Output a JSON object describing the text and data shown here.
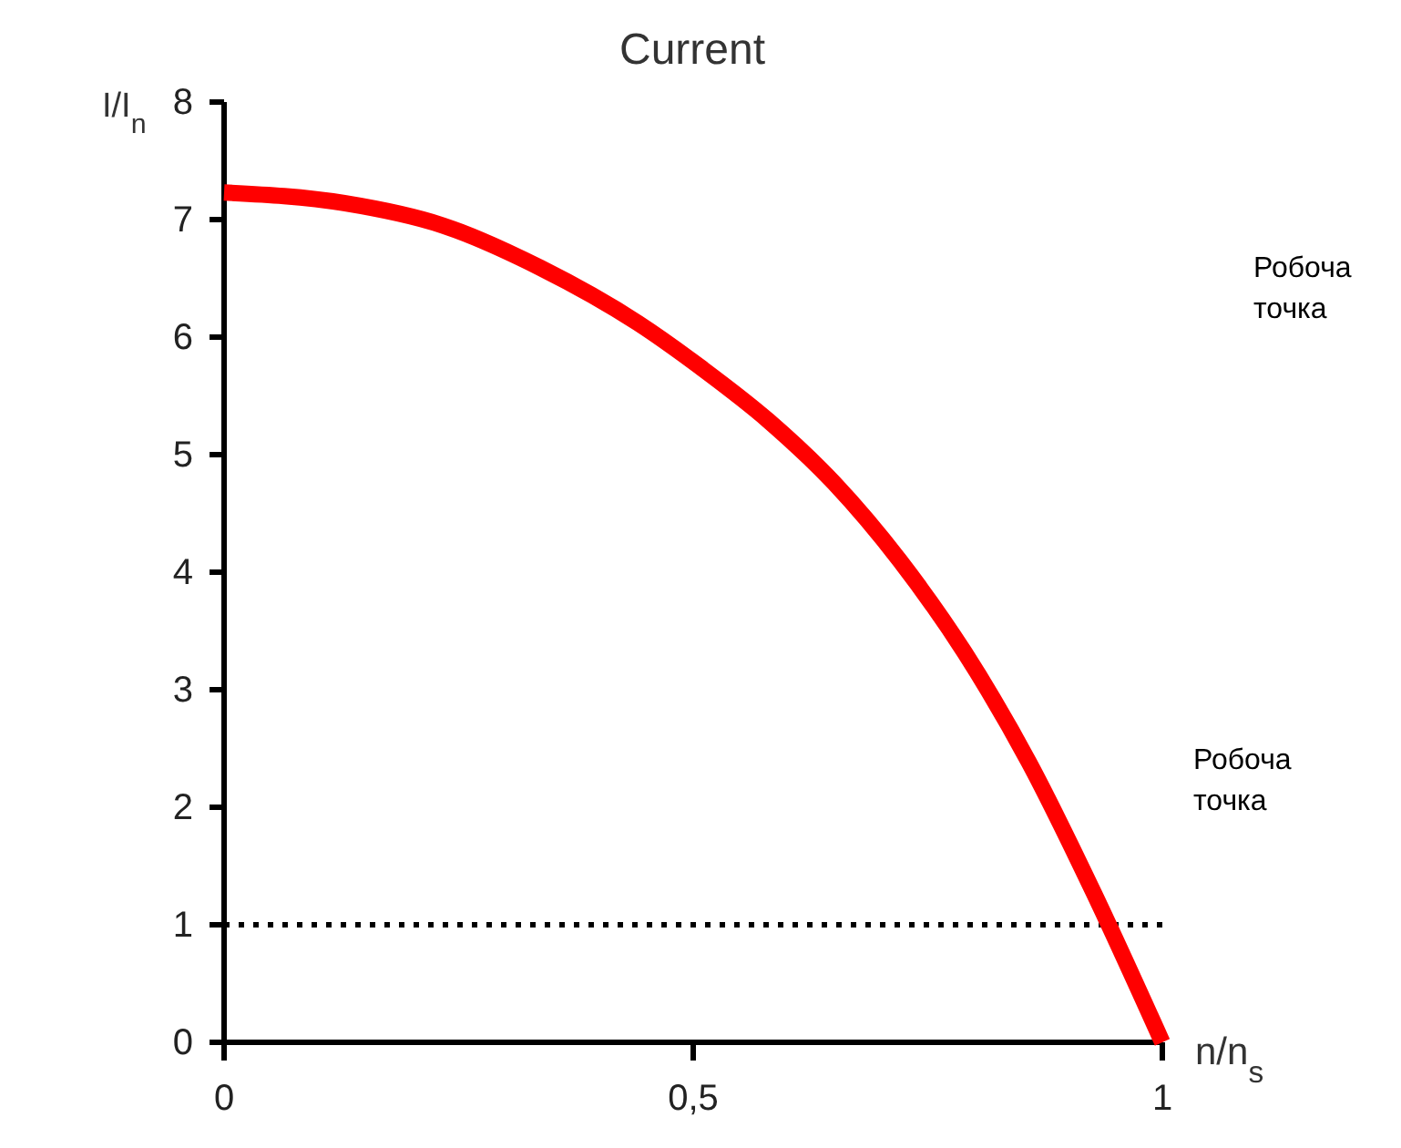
{
  "chart_data": {
    "type": "line",
    "title": "Current",
    "xlabel": "n/n$_{s}$",
    "ylabel": "I/I$_{n}$",
    "x": [
      0,
      0.128,
      0.233,
      0.337,
      0.441,
      0.51,
      0.58,
      0.65,
      0.72,
      0.789,
      0.858,
      0.927,
      1
    ],
    "series": [
      {
        "color": "#ff0000",
        "values": [
          7.23,
          7.14,
          6.95,
          6.59,
          6.12,
          5.73,
          5.29,
          4.76,
          4.1,
          3.32,
          2.38,
          1.27,
          0
        ]
      }
    ],
    "xlim": [
      0,
      1
    ],
    "xticks": [
      0,
      {
        "value": 0.5,
        "label": "0,5"
      },
      1
    ],
    "ylim": [
      0,
      8
    ],
    "yticks": [
      0,
      1,
      2,
      3,
      4,
      5,
      6,
      7,
      8
    ],
    "ref_lines": [
      {
        "axis": "y",
        "value": 1,
        "color": "#000000",
        "line_style": "dotted"
      }
    ],
    "annotations": [
      "Робоча точка",
      "Робоча точка"
    ],
    "grid": false,
    "marker": "none",
    "line_style": "solid"
  }
}
